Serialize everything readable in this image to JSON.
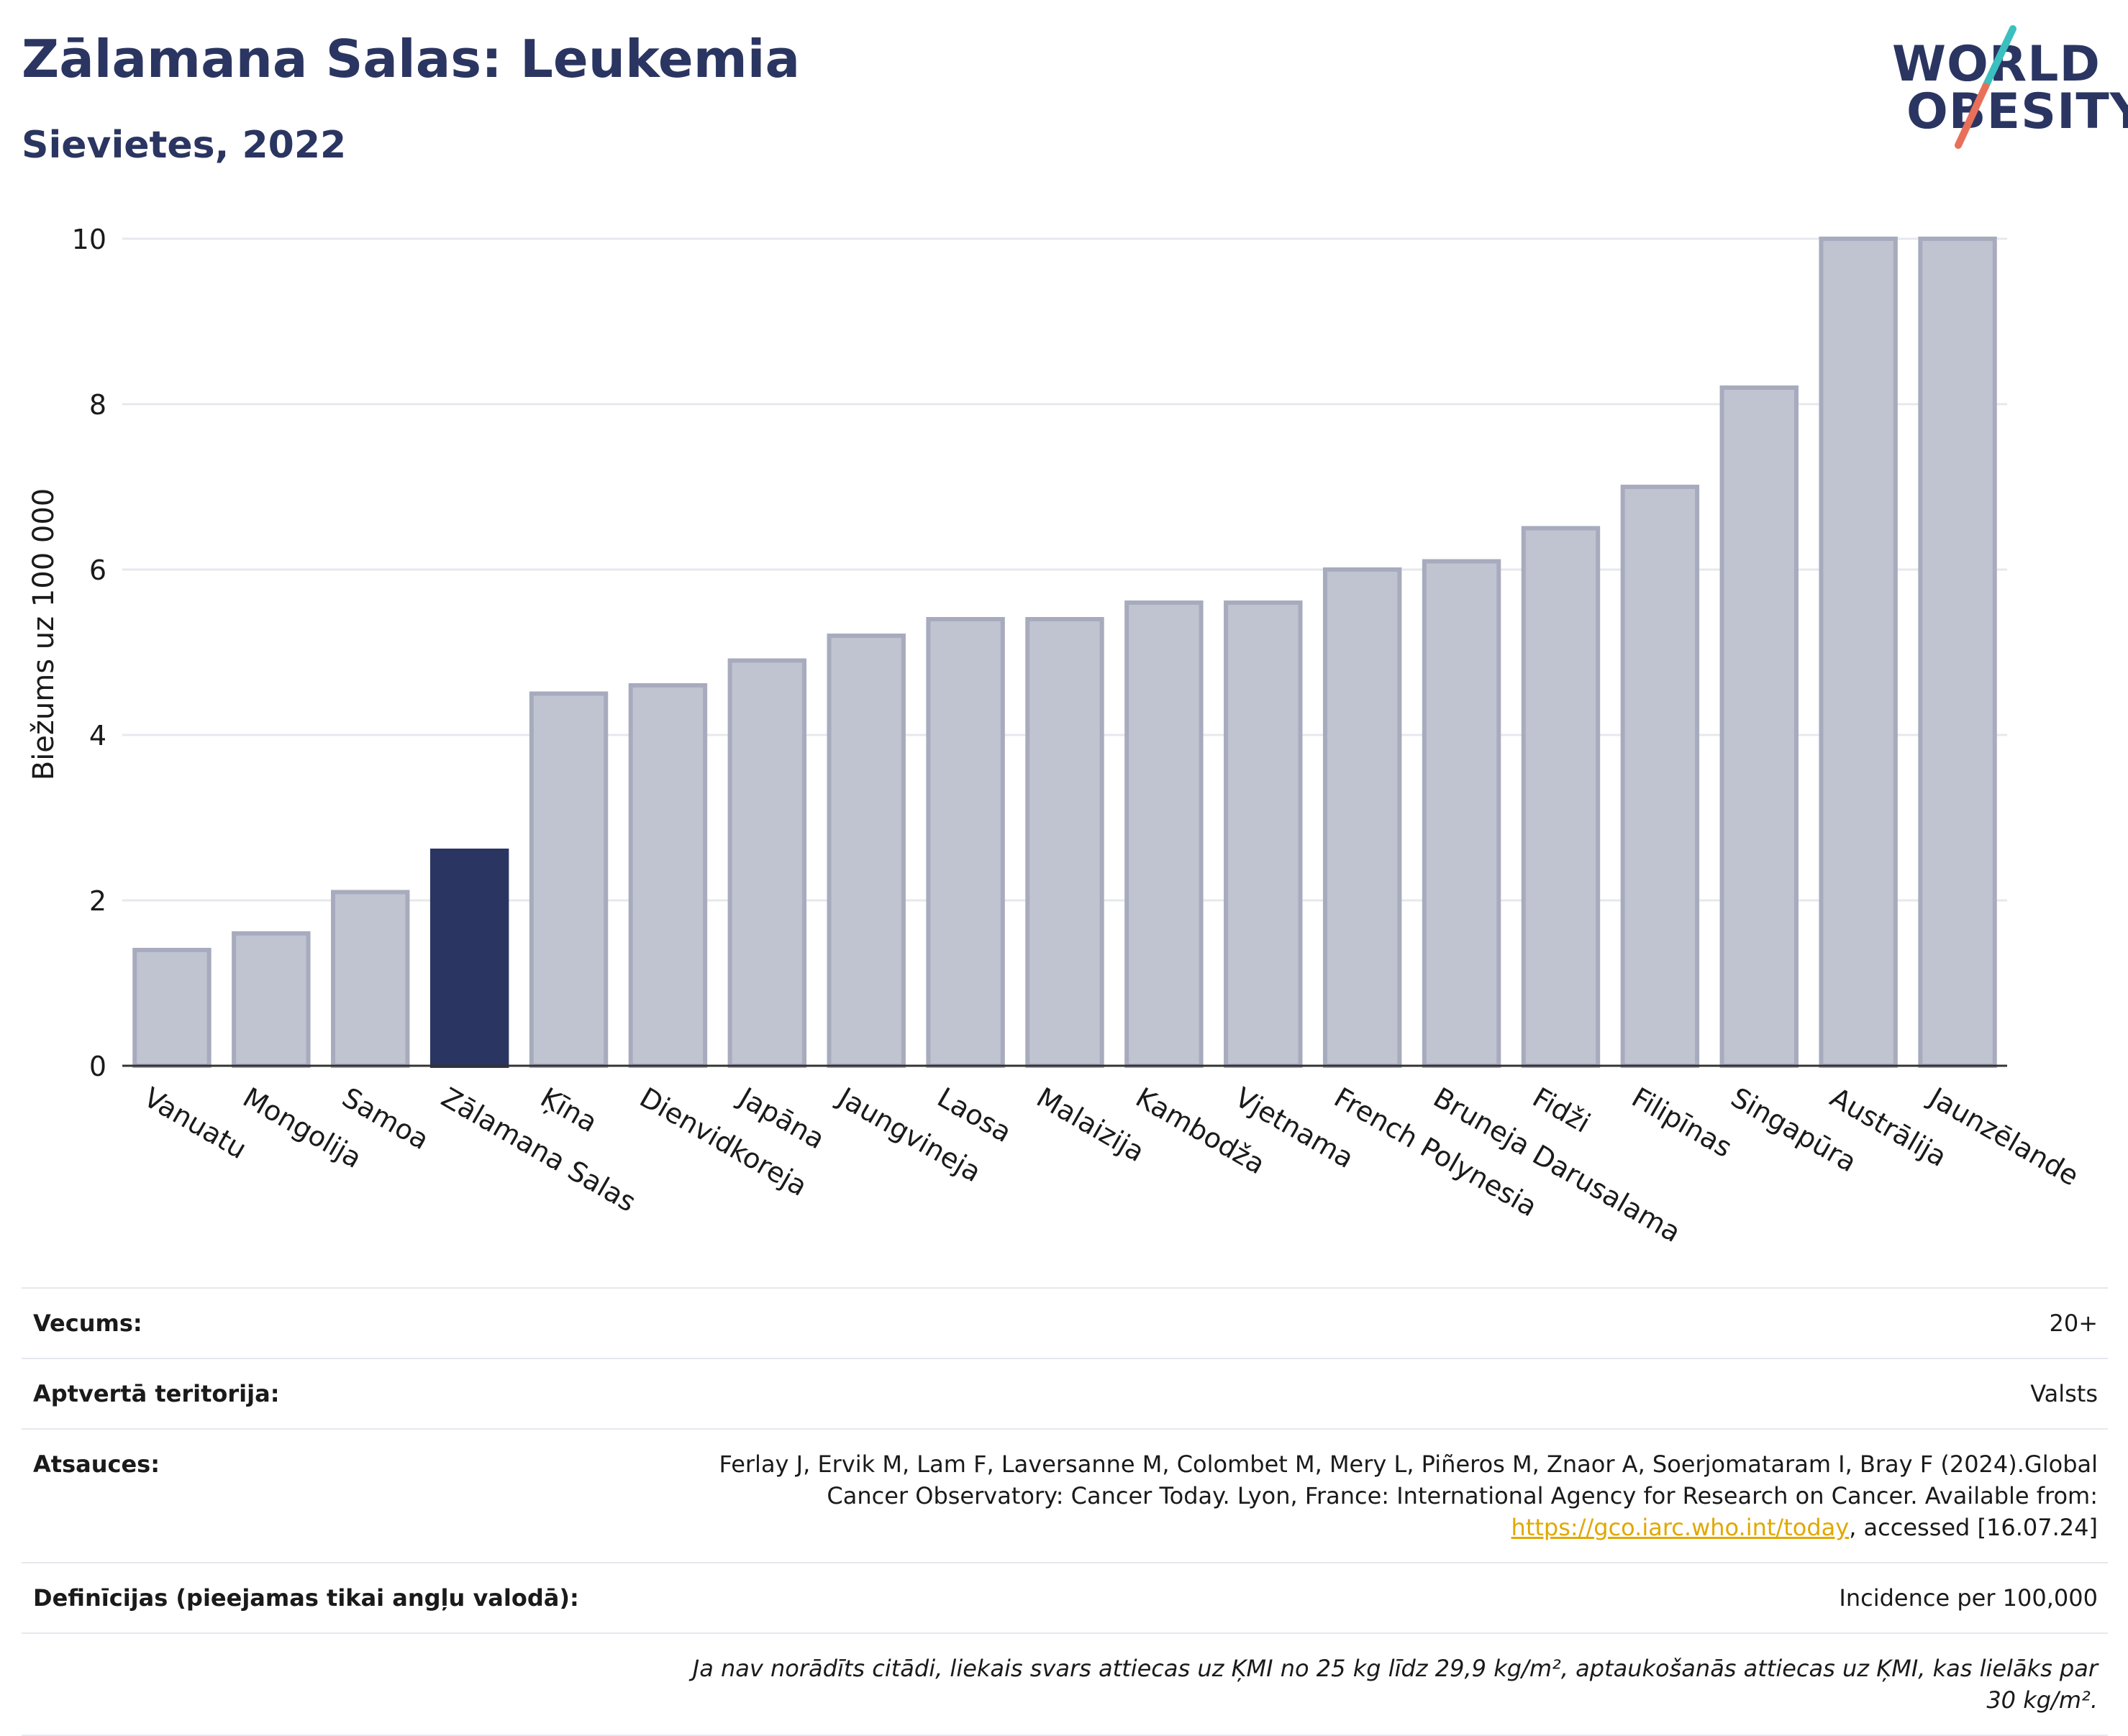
{
  "header": {
    "title": "Zālamana Salas: Leukemia",
    "subtitle": "Sievietes, 2022"
  },
  "logo": {
    "line1": "WORLD",
    "line2": "OBESITY",
    "accent_teal": "#3bbfbf",
    "accent_coral": "#e8705a"
  },
  "chart_data": {
    "type": "bar",
    "ylabel": "Biežums uz 100 000",
    "xlabel": "",
    "ylim": [
      0,
      10
    ],
    "yticks": [
      0,
      2,
      4,
      6,
      8,
      10
    ],
    "grid": true,
    "highlight": "Zālamana Salas",
    "highlight_color": "#2b3561",
    "bar_color": "#c0c3d0",
    "bar_edge_color": "#a7abbd",
    "categories": [
      "Vanuatu",
      "Mongolija",
      "Samoa",
      "Zālamana Salas",
      "Ķīna",
      "Dienvidkoreja",
      "Japāna",
      "Jaungvineja",
      "Laosa",
      "Malaizija",
      "Kambodža",
      "Vjetnama",
      "French Polynesia",
      "Bruneja Darusalama",
      "Fidži",
      "Filipīnas",
      "Singapūra",
      "Austrālija",
      "Jaunzēlande"
    ],
    "values": [
      1.4,
      1.6,
      2.1,
      2.6,
      4.5,
      4.6,
      4.9,
      5.2,
      5.4,
      5.4,
      5.6,
      5.6,
      6.0,
      6.1,
      6.5,
      7.0,
      8.2,
      10.0,
      10.0
    ]
  },
  "info": {
    "age_label": "Vecums:",
    "age_value": "20+",
    "coverage_label": "Aptvertā teritorija:",
    "coverage_value": "Valsts",
    "refs_label": "Atsauces:",
    "refs_text": "Ferlay J, Ervik M, Lam F, Laversanne M, Colombet M, Mery L, Piñeros M, Znaor A, Soerjomataram I, Bray F (2024).Global Cancer Observatory: Cancer Today. Lyon, France: International Agency for Research on Cancer. Available from: ",
    "refs_link": "https://gco.iarc.who.int/today",
    "refs_tail": ", accessed [16.07.24]",
    "defs_label": "Definīcijas (pieejamas tikai angļu valodā):",
    "defs_value": "Incidence per 100,000",
    "note": "Ja nav norādīts citādi, liekais svars attiecas uz ĶMI no 25 kg līdz 29,9 kg/m², aptaukošanās attiecas uz ĶMI, kas lielāks par 30 kg/m²."
  }
}
